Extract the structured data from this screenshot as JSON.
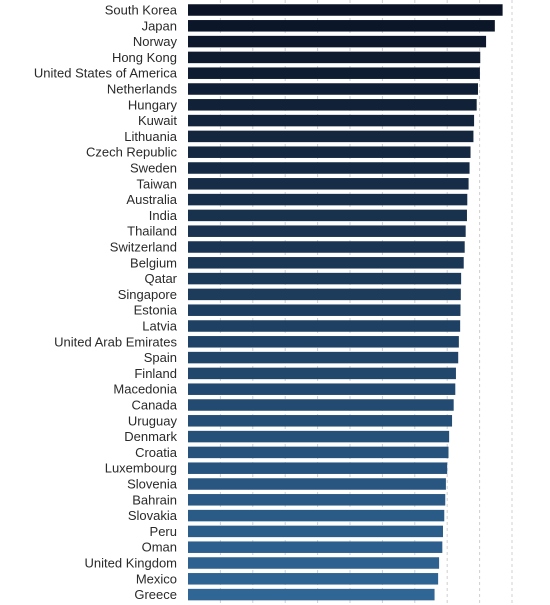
{
  "chart_data": {
    "type": "bar",
    "orientation": "horizontal",
    "title": "",
    "xlabel": "",
    "ylabel": "",
    "grid": true,
    "legend": "none",
    "xlim": [
      0,
      1
    ],
    "colors": {
      "bar_start": "#0b1426",
      "bar_end": "#2f6696",
      "grid": "#d0d0d0",
      "label": "#2a2a2a"
    },
    "categories": [
      "South Korea",
      "Japan",
      "Norway",
      "Hong Kong",
      "United States of America",
      "Netherlands",
      "Hungary",
      "Kuwait",
      "Lithuania",
      "Czech Republic",
      "Sweden",
      "Taiwan",
      "Australia",
      "India",
      "Thailand",
      "Switzerland",
      "Belgium",
      "Qatar",
      "Singapore",
      "Estonia",
      "Latvia",
      "United Arab Emirates",
      "Spain",
      "Finland",
      "Macedonia",
      "Canada",
      "Uruguay",
      "Denmark",
      "Croatia",
      "Luxembourg",
      "Slovenia",
      "Bahrain",
      "Slovakia",
      "Peru",
      "Oman",
      "United Kingdom",
      "Mexico",
      "Greece"
    ],
    "values": [
      0.971,
      0.947,
      0.92,
      0.902,
      0.901,
      0.895,
      0.891,
      0.883,
      0.881,
      0.872,
      0.869,
      0.866,
      0.862,
      0.861,
      0.857,
      0.854,
      0.851,
      0.843,
      0.842,
      0.841,
      0.84,
      0.836,
      0.834,
      0.827,
      0.825,
      0.82,
      0.815,
      0.806,
      0.804,
      0.8,
      0.796,
      0.794,
      0.791,
      0.787,
      0.785,
      0.775,
      0.772,
      0.761
    ]
  }
}
